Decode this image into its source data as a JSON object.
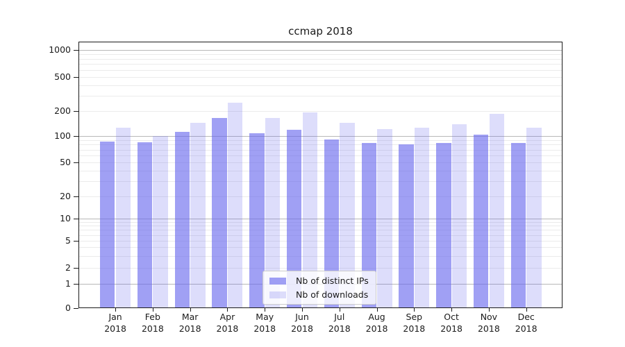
{
  "title": "ccmap 2018",
  "colors": {
    "bar_base": "#6666ee",
    "ips_bar_alpha": 0.62,
    "downloads_bar_alpha": 0.22,
    "grid_major": "#b8b8b8",
    "grid_minor": "#ebebeb",
    "axis": "#1a1a1a"
  },
  "chart_data": {
    "type": "bar",
    "title": "ccmap 2018",
    "categories": [
      "Jan 2018",
      "Feb 2018",
      "Mar 2018",
      "Apr 2018",
      "May 2018",
      "Jun 2018",
      "Jul 2018",
      "Aug 2018",
      "Sep 2018",
      "Oct 2018",
      "Nov 2018",
      "Dec 2018"
    ],
    "series": [
      {
        "name": "Nb of distinct IPs",
        "values": [
          87,
          85,
          113,
          166,
          107,
          120,
          91,
          84,
          81,
          84,
          103,
          84
        ]
      },
      {
        "name": "Nb of downloads",
        "values": [
          126,
          100,
          143,
          250,
          165,
          193,
          145,
          122,
          125,
          139,
          185,
          125
        ]
      }
    ],
    "xlabel": "",
    "ylabel": "",
    "yscale": "symlog",
    "yticks": [
      0,
      1,
      2,
      5,
      10,
      20,
      50,
      100,
      200,
      500,
      1000
    ],
    "ylim": [
      0,
      1300
    ],
    "grid": true,
    "legend_position": "lower center"
  }
}
